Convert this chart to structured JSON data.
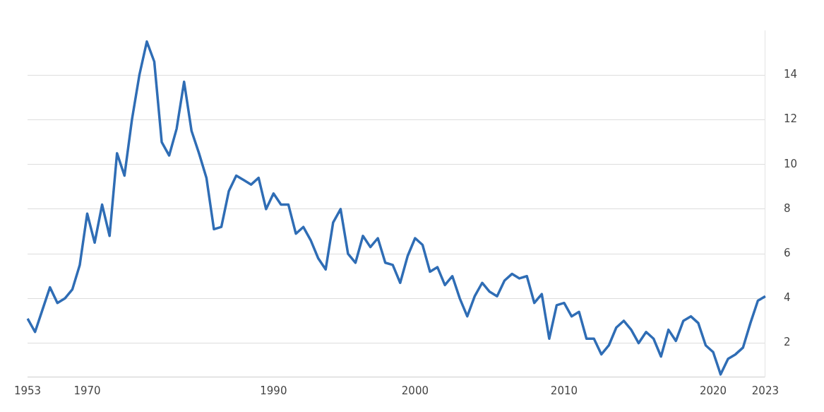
{
  "chart_data": {
    "type": "line",
    "categories": [
      "1953",
      null,
      null,
      null,
      null,
      null,
      null,
      null,
      "1970",
      null,
      null,
      null,
      null,
      null,
      null,
      null,
      null,
      null,
      null,
      null,
      null,
      null,
      null,
      null,
      null,
      null,
      null,
      null,
      null,
      null,
      null,
      null,
      null,
      "1990",
      null,
      null,
      null,
      null,
      null,
      null,
      null,
      null,
      null,
      null,
      null,
      null,
      null,
      null,
      null,
      null,
      null,
      null,
      "2000",
      null,
      null,
      null,
      null,
      null,
      null,
      null,
      null,
      null,
      null,
      null,
      null,
      null,
      null,
      null,
      null,
      null,
      null,
      null,
      "2010",
      null,
      null,
      null,
      null,
      null,
      null,
      null,
      null,
      null,
      null,
      null,
      null,
      null,
      null,
      null,
      null,
      null,
      null,
      null,
      "2020",
      null,
      null,
      null,
      null,
      null,
      null,
      "2023"
    ],
    "series": [
      {
        "color": "#2f6db5",
        "values": [
          3.1,
          2.5,
          3.5,
          4.5,
          3.8,
          4.0,
          4.4,
          5.5,
          7.8,
          6.5,
          8.2,
          6.8,
          10.5,
          9.5,
          12.0,
          14.0,
          15.5,
          14.6,
          11.0,
          10.4,
          11.6,
          13.7,
          11.5,
          10.5,
          9.4,
          7.1,
          7.2,
          8.8,
          9.5,
          9.3,
          9.1,
          9.4,
          8.0,
          8.7,
          8.2,
          8.2,
          6.9,
          7.2,
          6.6,
          5.8,
          5.3,
          7.4,
          8.0,
          6.0,
          5.6,
          6.8,
          6.3,
          6.7,
          5.6,
          5.5,
          4.7,
          5.9,
          6.7,
          6.4,
          5.2,
          5.4,
          4.6,
          5.0,
          4.0,
          3.2,
          4.1,
          4.7,
          4.3,
          4.1,
          4.8,
          5.1,
          4.9,
          5.0,
          3.8,
          4.2,
          2.2,
          3.7,
          3.8,
          3.2,
          3.4,
          2.2,
          2.2,
          1.5,
          1.9,
          2.7,
          3.0,
          2.6,
          2.0,
          2.5,
          2.2,
          1.4,
          2.6,
          2.1,
          3.0,
          3.2,
          2.9,
          1.9,
          1.6,
          0.6,
          1.3,
          1.5,
          1.8,
          2.9,
          3.9,
          4.1
        ]
      }
    ],
    "ylim": [
      0.5,
      16
    ],
    "yticks": [
      2,
      4,
      6,
      8,
      10,
      12,
      14
    ],
    "grid": "y",
    "legend": false,
    "marker": "none",
    "line_style": "solid"
  }
}
